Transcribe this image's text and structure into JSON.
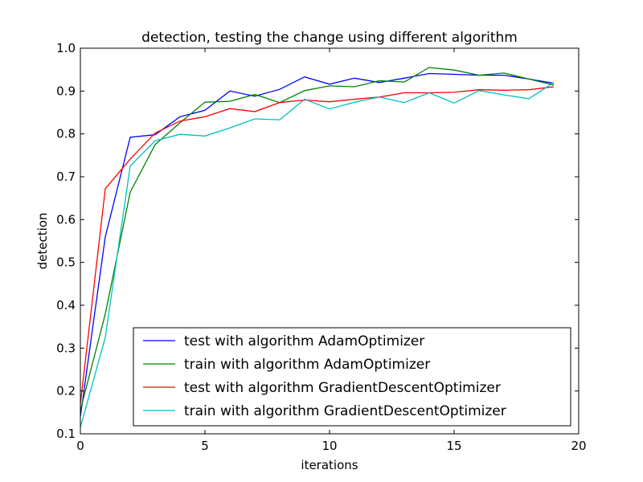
{
  "chart_data": {
    "type": "line",
    "title": "detection, testing the change using different algorithm",
    "xlabel": "iterations",
    "ylabel": "detection",
    "xlim": [
      0,
      20
    ],
    "ylim": [
      0.1,
      1.0
    ],
    "xticks": [
      0,
      5,
      10,
      15,
      20
    ],
    "xtick_labels": [
      "0",
      "5",
      "10",
      "15",
      "20"
    ],
    "yticks": [
      0.1,
      0.2,
      0.3,
      0.4,
      0.5,
      0.6,
      0.7,
      0.8,
      0.9,
      1.0
    ],
    "ytick_labels": [
      "0.1",
      "0.2",
      "0.3",
      "0.4",
      "0.5",
      "0.6",
      "0.7",
      "0.8",
      "0.9",
      "1.0"
    ],
    "grid": false,
    "legend_position": "lower-right",
    "x": [
      0,
      1,
      2,
      3,
      4,
      5,
      6,
      7,
      8,
      9,
      10,
      11,
      12,
      13,
      14,
      15,
      16,
      17,
      18,
      19
    ],
    "series": [
      {
        "name": "test with algorithm AdamOptimizer",
        "color": "#0000ff",
        "values": [
          0.14,
          0.56,
          0.792,
          0.798,
          0.84,
          0.855,
          0.9,
          0.888,
          0.904,
          0.933,
          0.916,
          0.93,
          0.92,
          0.93,
          0.941,
          0.939,
          0.937,
          0.937,
          0.928,
          0.918
        ]
      },
      {
        "name": "train with algorithm AdamOptimizer",
        "color": "#008000",
        "values": [
          0.155,
          0.38,
          0.664,
          0.775,
          0.826,
          0.874,
          0.876,
          0.892,
          0.873,
          0.901,
          0.912,
          0.91,
          0.924,
          0.921,
          0.955,
          0.949,
          0.937,
          0.942,
          0.928,
          0.914
        ]
      },
      {
        "name": "test with algorithm GradientDescentOptimizer",
        "color": "#ff0000",
        "values": [
          0.17,
          0.672,
          0.741,
          0.802,
          0.83,
          0.84,
          0.859,
          0.852,
          0.873,
          0.879,
          0.875,
          0.881,
          0.886,
          0.896,
          0.896,
          0.897,
          0.903,
          0.902,
          0.903,
          0.91
        ]
      },
      {
        "name": "train with algorithm GradientDescentOptimizer",
        "color": "#00bfbf",
        "values": [
          0.115,
          0.325,
          0.725,
          0.784,
          0.799,
          0.795,
          0.814,
          0.835,
          0.833,
          0.881,
          0.858,
          0.874,
          0.886,
          0.873,
          0.896,
          0.872,
          0.901,
          0.891,
          0.882,
          0.92
        ]
      }
    ]
  }
}
